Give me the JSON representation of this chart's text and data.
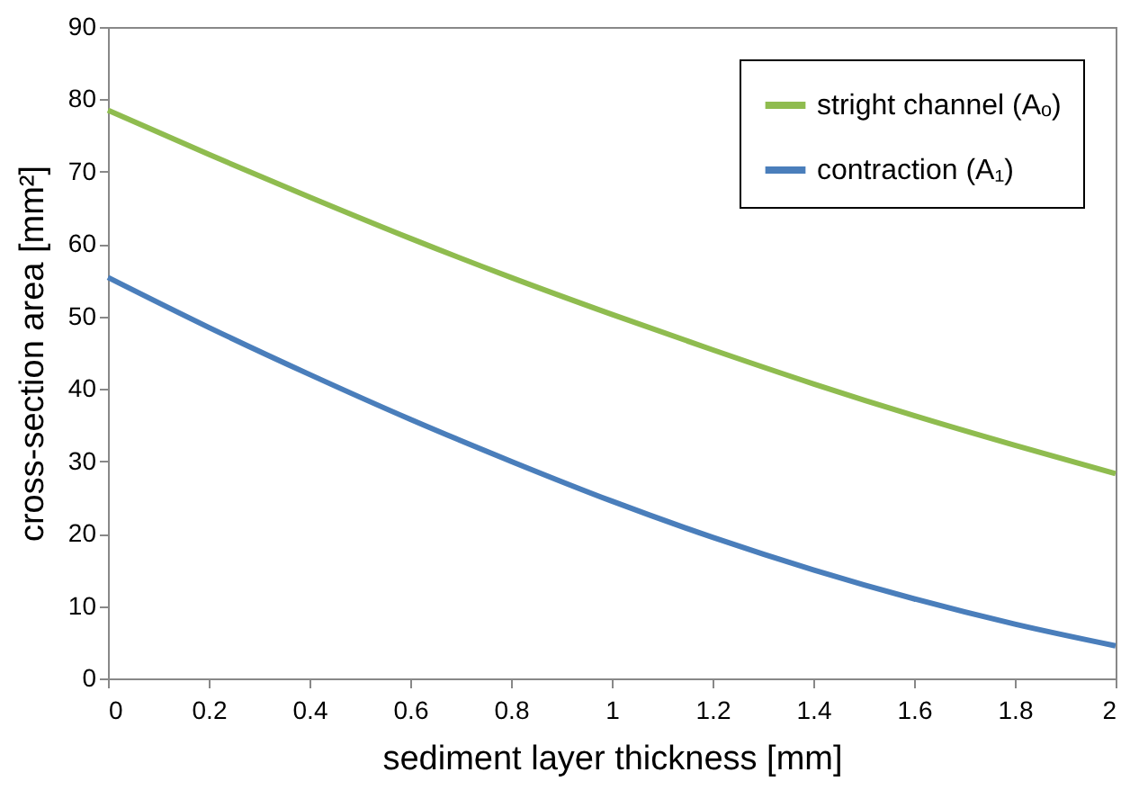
{
  "chart_data": {
    "type": "line",
    "xlabel": "sediment layer thickness [mm]",
    "ylabel": "cross-section area [mm²]",
    "x": [
      0,
      0.2,
      0.4,
      0.6,
      0.8,
      1,
      1.2,
      1.4,
      1.6,
      1.8,
      2
    ],
    "series": [
      {
        "name": "stright channel (Aₒ)",
        "color": "#8fbc4f",
        "values": [
          78.5,
          72.4,
          66.5,
          60.8,
          55.4,
          50.3,
          45.4,
          40.7,
          36.3,
          32.2,
          28.3
        ]
      },
      {
        "name": "contraction (A₁)",
        "color": "#4a7ebb",
        "values": [
          55.4,
          48.5,
          42,
          35.8,
          30,
          24.5,
          19.5,
          15,
          11,
          7.5,
          4.5
        ]
      }
    ],
    "xlim": [
      0,
      2
    ],
    "xticks": [
      0,
      0.2,
      0.4,
      0.6,
      0.8,
      1,
      1.2,
      1.4,
      1.6,
      1.8,
      2
    ],
    "ylim": [
      0,
      90
    ],
    "yticks": [
      0,
      10,
      20,
      30,
      40,
      50,
      60,
      70,
      80,
      90
    ],
    "grid": false,
    "legend": "top right",
    "marker": "none",
    "line_style": "solid"
  }
}
